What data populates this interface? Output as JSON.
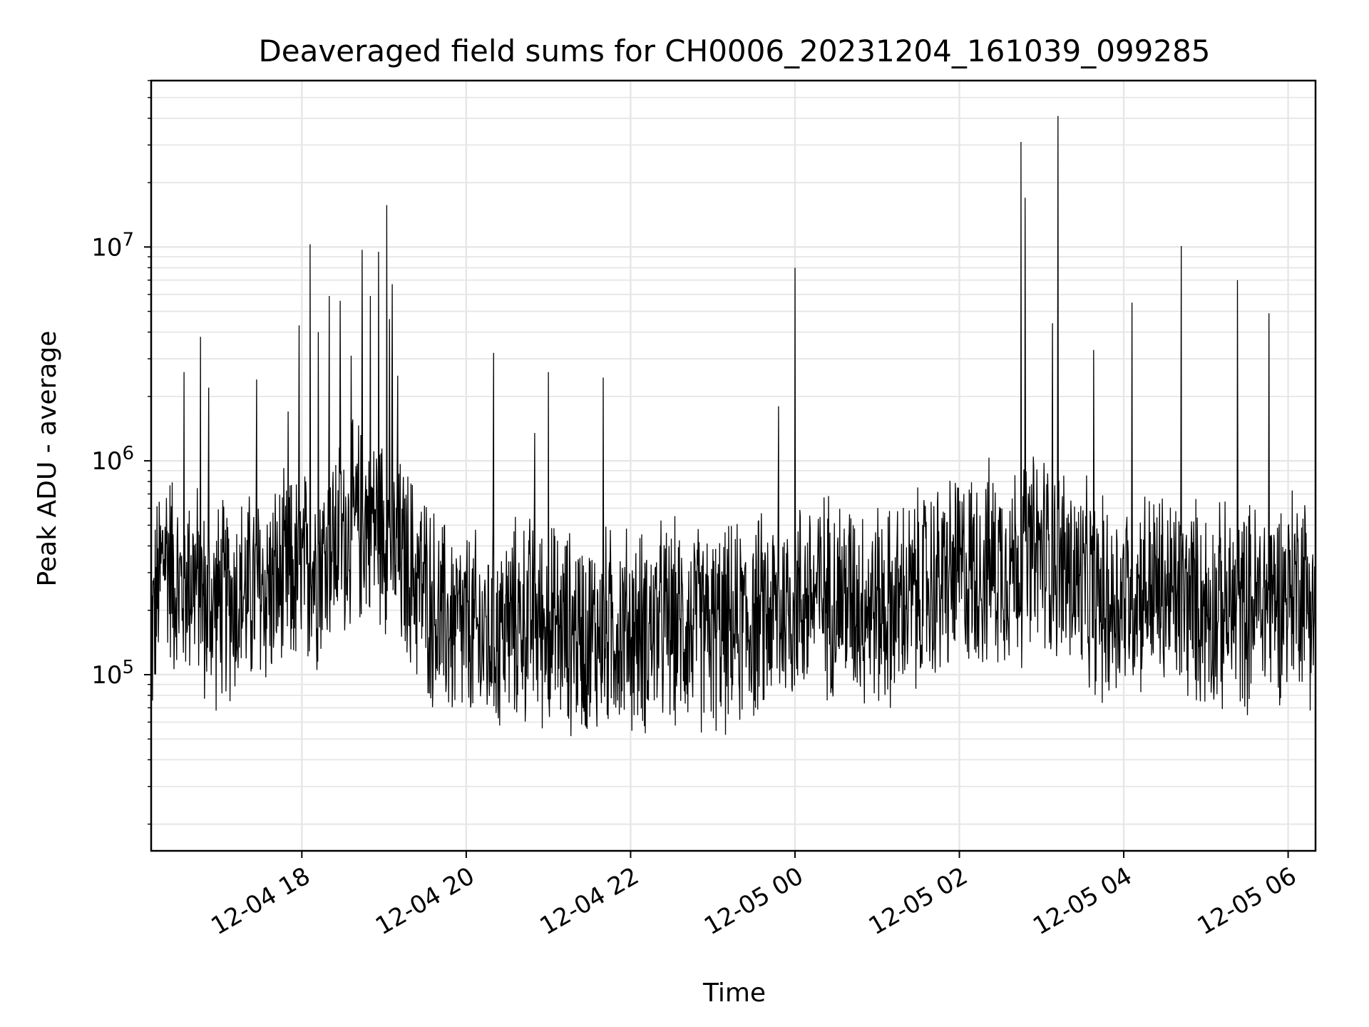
{
  "chart_data": {
    "type": "line",
    "title": "Deaveraged field sums for CH0006_20231204_161039_099285",
    "xlabel": "Time",
    "ylabel": "Peak ADU - average",
    "yscale": "log",
    "ylim": [
      15000,
      60000000
    ],
    "xlim": [
      "2023-12-04 16:10",
      "2023-12-05 06:20"
    ],
    "grid": true,
    "colors": {
      "series": "#000000",
      "grid": "#e6e6e6",
      "axes": "#000000"
    },
    "x_ticks": [
      "12-04 18",
      "12-04 20",
      "12-04 22",
      "12-05 00",
      "12-05 02",
      "12-05 04",
      "12-05 06"
    ],
    "y_ticks": [
      {
        "base": "10",
        "exp": "5",
        "value": 100000
      },
      {
        "base": "10",
        "exp": "6",
        "value": 1000000
      },
      {
        "base": "10",
        "exp": "7",
        "value": 10000000
      }
    ],
    "series": [
      {
        "x": [
          "2023-12-04 16:10",
          "2023-12-04 16:20",
          "2023-12-04 16:30",
          "2023-12-04 16:40",
          "2023-12-04 16:50",
          "2023-12-04 17:00",
          "2023-12-04 17:10",
          "2023-12-04 17:20",
          "2023-12-04 17:30",
          "2023-12-04 17:40",
          "2023-12-04 17:50",
          "2023-12-04 18:00",
          "2023-12-04 18:10",
          "2023-12-04 18:20",
          "2023-12-04 18:30",
          "2023-12-04 18:40",
          "2023-12-04 18:50",
          "2023-12-04 19:00",
          "2023-12-04 19:10",
          "2023-12-04 19:20",
          "2023-12-04 19:30",
          "2023-12-04 19:40",
          "2023-12-04 19:50",
          "2023-12-04 20:00",
          "2023-12-04 20:10",
          "2023-12-04 20:20",
          "2023-12-04 20:30",
          "2023-12-04 20:40",
          "2023-12-04 20:50",
          "2023-12-04 21:00",
          "2023-12-04 21:10",
          "2023-12-04 21:20",
          "2023-12-04 21:30",
          "2023-12-04 21:40",
          "2023-12-04 21:50",
          "2023-12-04 22:00",
          "2023-12-04 22:10",
          "2023-12-04 22:20",
          "2023-12-04 22:30",
          "2023-12-04 22:40",
          "2023-12-04 22:50",
          "2023-12-04 23:00",
          "2023-12-04 23:10",
          "2023-12-04 23:20",
          "2023-12-04 23:30",
          "2023-12-04 23:40",
          "2023-12-04 23:50",
          "2023-12-05 00:00",
          "2023-12-05 00:10",
          "2023-12-05 00:20",
          "2023-12-05 00:30",
          "2023-12-05 00:40",
          "2023-12-05 00:50",
          "2023-12-05 01:00",
          "2023-12-05 01:10",
          "2023-12-05 01:20",
          "2023-12-05 01:30",
          "2023-12-05 01:40",
          "2023-12-05 01:50",
          "2023-12-05 02:00",
          "2023-12-05 02:10",
          "2023-12-05 02:20",
          "2023-12-05 02:30",
          "2023-12-05 02:40",
          "2023-12-05 02:50",
          "2023-12-05 03:00",
          "2023-12-05 03:10",
          "2023-12-05 03:20",
          "2023-12-05 03:30",
          "2023-12-05 03:40",
          "2023-12-05 03:50",
          "2023-12-05 04:00",
          "2023-12-05 04:10",
          "2023-12-05 04:20",
          "2023-12-05 04:30",
          "2023-12-05 04:40",
          "2023-12-05 04:50",
          "2023-12-05 05:00",
          "2023-12-05 05:10",
          "2023-12-05 05:20",
          "2023-12-05 05:30",
          "2023-12-05 05:40",
          "2023-12-05 05:50",
          "2023-12-05 06:00",
          "2023-12-05 06:10",
          "2023-12-05 06:20"
        ],
        "y": [
          150000,
          400000,
          250000,
          300000,
          200000,
          220000,
          230000,
          240000,
          250000,
          260000,
          280000,
          300000,
          320000,
          380000,
          450000,
          500000,
          550000,
          500000,
          350000,
          300000,
          250000,
          180000,
          170000,
          160000,
          150000,
          150000,
          170000,
          180000,
          180000,
          170000,
          160000,
          160000,
          150000,
          160000,
          165000,
          160000,
          160000,
          170000,
          170000,
          170000,
          165000,
          160000,
          160000,
          170000,
          180000,
          190000,
          200000,
          220000,
          230000,
          240000,
          240000,
          230000,
          220000,
          210000,
          200000,
          220000,
          240000,
          260000,
          280000,
          300000,
          310000,
          320000,
          330000,
          340000,
          350000,
          380000,
          360000,
          300000,
          260000,
          230000,
          210000,
          240000,
          260000,
          250000,
          240000,
          230000,
          220000,
          210000,
          200000,
          200000,
          210000,
          220000,
          230000,
          250000,
          280000,
          200000
        ],
        "spike_x": [
          "2023-12-04 16:34",
          "2023-12-04 16:46",
          "2023-12-04 16:52",
          "2023-12-04 17:27",
          "2023-12-04 17:50",
          "2023-12-04 17:58",
          "2023-12-04 18:06",
          "2023-12-04 18:12",
          "2023-12-04 18:20",
          "2023-12-04 18:28",
          "2023-12-04 18:36",
          "2023-12-04 18:44",
          "2023-12-04 18:50",
          "2023-12-04 18:56",
          "2023-12-04 19:02",
          "2023-12-04 19:04",
          "2023-12-04 19:06",
          "2023-12-04 19:10",
          "2023-12-04 20:20",
          "2023-12-04 20:50",
          "2023-12-04 21:00",
          "2023-12-04 21:40",
          "2023-12-05 00:00",
          "2023-12-04 23:48",
          "2023-12-05 02:45",
          "2023-12-05 03:12",
          "2023-12-05 02:48",
          "2023-12-05 04:06",
          "2023-12-05 04:42",
          "2023-12-05 05:23",
          "2023-12-05 05:46",
          "2023-12-05 03:38",
          "2023-12-05 03:08"
        ],
        "spike_y": [
          2600000,
          3800000,
          2200000,
          2400000,
          1700000,
          4300000,
          10300000,
          4000000,
          5900000,
          5600000,
          3100000,
          9700000,
          5900000,
          9500000,
          15700000,
          4600000,
          6700000,
          2500000,
          3200000,
          1350000,
          2600000,
          2450000,
          8000000,
          1800000,
          31000000,
          41000000,
          17000000,
          5500000,
          10100000,
          7000000,
          4900000,
          3300000,
          4400000
        ]
      }
    ]
  }
}
